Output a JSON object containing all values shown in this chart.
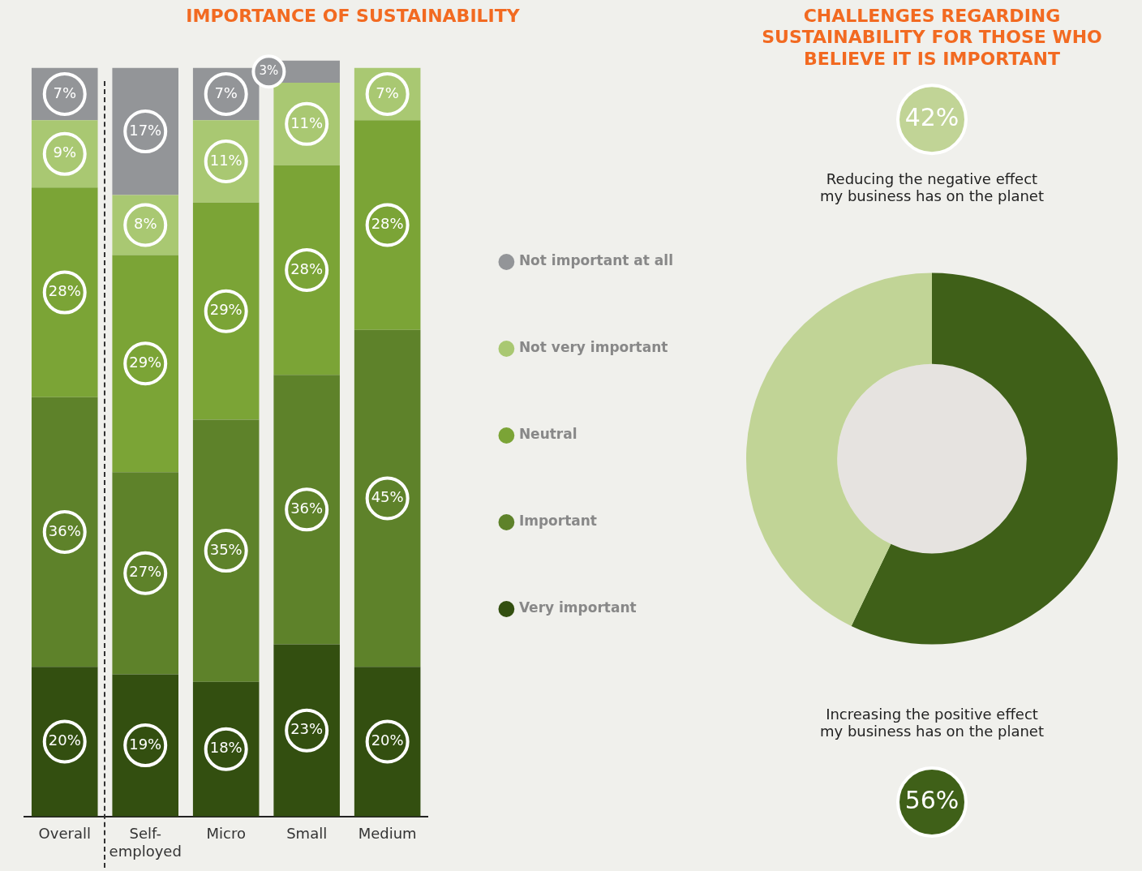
{
  "chart_data": [
    {
      "type": "bar",
      "title": "IMPORTANCE OF SUSTAINABILITY",
      "categories": [
        "Overall",
        "Self-employed",
        "Micro",
        "Small",
        "Medium"
      ],
      "stacked": true,
      "legend": "right",
      "grid": false,
      "tick_labels": "x",
      "series": [
        {
          "name": "Very important",
          "color": "#334f10",
          "values": [
            20,
            19,
            18,
            23,
            20
          ],
          "value_labels": [
            "20%",
            "19%",
            "18%",
            "23%",
            "20%"
          ]
        },
        {
          "name": "Important",
          "color": "#5e822a",
          "values": [
            36,
            27,
            35,
            36,
            45
          ],
          "value_labels": [
            "36%",
            "27%",
            "35%",
            "36%",
            "45%"
          ]
        },
        {
          "name": "Neutral",
          "color": "#7ba436",
          "values": [
            28,
            29,
            29,
            28,
            28
          ],
          "value_labels": [
            "28%",
            "29%",
            "29%",
            "28%",
            "28%"
          ]
        },
        {
          "name": "Not very important",
          "color": "#a9c872",
          "values": [
            9,
            8,
            11,
            11,
            7
          ],
          "value_labels": [
            "9%",
            "8%",
            "11%",
            "11%",
            "7%"
          ]
        },
        {
          "name": "Not important at all",
          "color": "#939598",
          "values": [
            7,
            17,
            7,
            3,
            null
          ],
          "value_labels": [
            "7%",
            "17%",
            "7%",
            "3%",
            null
          ]
        }
      ]
    },
    {
      "type": "donut",
      "title": "CHALLENGES REGARDING SUSTAINABILITY FOR THOSE WHO BELIEVE IT IS IMPORTANT",
      "categories": [
        "Increasing the positive effect my business has on the planet",
        "Reducing the negative effect my business has on the planet"
      ],
      "values": [
        56,
        42
      ],
      "value_labels": [
        "56%",
        "42%"
      ],
      "colors": [
        "#3f6018",
        "#c1d496"
      ],
      "legend": false
    }
  ]
}
